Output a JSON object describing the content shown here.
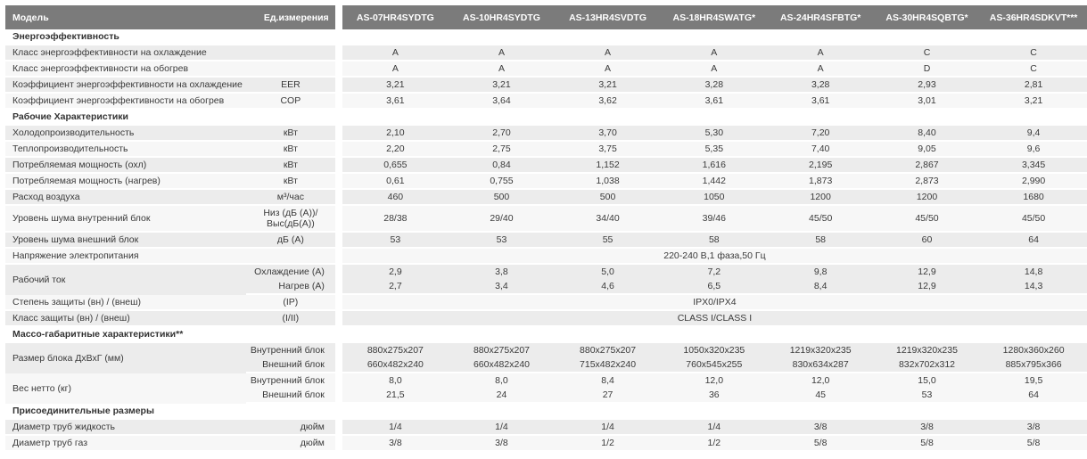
{
  "header": {
    "model_label": "Модель",
    "unit_label": "Ед.измерения",
    "models": [
      "AS-07HR4SYDTG",
      "AS-10HR4SYDTG",
      "AS-13HR4SVDTG",
      "AS-18HR4SWATG*",
      "AS-24HR4SFBTG*",
      "AS-30HR4SQBTG*",
      "AS-36HR4SDKVT***"
    ]
  },
  "sections": {
    "energy": "Энергоэффективность",
    "operating": "Рабочие Характеристики",
    "dimensions": "Массо-габаритные характеристики**",
    "connections": "Присоединительные размеры"
  },
  "rows": {
    "cool_class": {
      "label": "Класс энергоэффективности на охлаждение",
      "unit": "",
      "values": [
        "A",
        "A",
        "A",
        "A",
        "A",
        "C",
        "C"
      ]
    },
    "heat_class": {
      "label": "Класс энергоэффективности на обогрев",
      "unit": "",
      "values": [
        "A",
        "A",
        "A",
        "A",
        "A",
        "D",
        "C"
      ]
    },
    "eer": {
      "label": "Коэффициент энергоэффективности на охлаждение",
      "unit": "EER",
      "values": [
        "3,21",
        "3,21",
        "3,21",
        "3,28",
        "3,28",
        "2,93",
        "2,81"
      ]
    },
    "cop": {
      "label": "Коэффициент энергоэффективности на обогрев",
      "unit": "COP",
      "values": [
        "3,61",
        "3,64",
        "3,62",
        "3,61",
        "3,61",
        "3,01",
        "3,21"
      ]
    },
    "cool_cap": {
      "label": "Холодопроизводительность",
      "unit": "кВт",
      "values": [
        "2,10",
        "2,70",
        "3,70",
        "5,30",
        "7,20",
        "8,40",
        "9,4"
      ]
    },
    "heat_cap": {
      "label": "Теплопроизводительность",
      "unit": "кВт",
      "values": [
        "2,20",
        "2,75",
        "3,75",
        "5,35",
        "7,40",
        "9,05",
        "9,6"
      ]
    },
    "power_cool": {
      "label": "Потребляемая мощность (охл)",
      "unit": "кВт",
      "values": [
        "0,655",
        "0,84",
        "1,152",
        "1,616",
        "2,195",
        "2,867",
        "3,345"
      ]
    },
    "power_heat": {
      "label": "Потребляемая мощность (нагрев)",
      "unit": "кВт",
      "values": [
        "0,61",
        "0,755",
        "1,038",
        "1,442",
        "1,873",
        "2,873",
        "2,990"
      ]
    },
    "airflow": {
      "label": "Расход воздуха",
      "unit": "м³/час",
      "values": [
        "460",
        "500",
        "500",
        "1050",
        "1200",
        "1200",
        "1680"
      ]
    },
    "noise_in": {
      "label": "Уровень шума внутренний блок",
      "unit_line1": "Низ (дБ (А))/",
      "unit_line2": "Выс(дБ(А))",
      "values": [
        "28/38",
        "29/40",
        "34/40",
        "39/46",
        "45/50",
        "45/50",
        "45/50"
      ]
    },
    "noise_out": {
      "label": "Уровень шума внешний блок",
      "unit": "дБ (А)",
      "values": [
        "53",
        "53",
        "55",
        "58",
        "58",
        "60",
        "64"
      ]
    },
    "voltage": {
      "label": "Напряжение электропитания",
      "unit": "",
      "value": "220-240 В,1 фаза,50 Гц"
    },
    "current": {
      "label": "Рабочий ток",
      "unit_cool": "Охлаждение (А)",
      "unit_heat": "Нагрев (А)",
      "values_cool": [
        "2,9",
        "3,8",
        "5,0",
        "7,2",
        "9,8",
        "12,9",
        "14,8"
      ],
      "values_heat": [
        "2,7",
        "3,4",
        "4,6",
        "6,5",
        "8,4",
        "12,9",
        "14,3"
      ]
    },
    "ip": {
      "label": "Степень защиты (вн) / (внеш)",
      "unit": "(IP)",
      "value": "IPX0/IPX4"
    },
    "class": {
      "label": "Класс защиты (вн) / (внеш)",
      "unit": "(I/II)",
      "value": "CLASS I/CLASS I"
    },
    "size": {
      "label": "Размер блока ДхВхГ (мм)",
      "unit_in": "Внутренний блок",
      "unit_out": "Внешний блок",
      "values_in": [
        "880x275x207",
        "880x275x207",
        "880x275x207",
        "1050x320x235",
        "1219x320x235",
        "1219x320x235",
        "1280x360x260"
      ],
      "values_out": [
        "660x482x240",
        "660x482x240",
        "715x482x240",
        "760x545x255",
        "830x634x287",
        "832x702x312",
        "885x795x366"
      ]
    },
    "weight": {
      "label": "Вес нетто (кг)",
      "unit_in": "Внутренний блок",
      "unit_out": "Внешний блок",
      "values_in": [
        "8,0",
        "8,0",
        "8,4",
        "12,0",
        "12,0",
        "15,0",
        "19,5"
      ],
      "values_out": [
        "21,5",
        "24",
        "27",
        "36",
        "45",
        "53",
        "64"
      ]
    },
    "pipe_liquid": {
      "label": "Диаметр труб жидкость",
      "unit": "дюйм",
      "values": [
        "1/4",
        "1/4",
        "1/4",
        "1/4",
        "3/8",
        "3/8",
        "3/8"
      ]
    },
    "pipe_gas": {
      "label": "Диаметр труб газ",
      "unit": "дюйм",
      "values": [
        "3/8",
        "3/8",
        "1/2",
        "1/2",
        "5/8",
        "5/8",
        "5/8"
      ]
    }
  }
}
